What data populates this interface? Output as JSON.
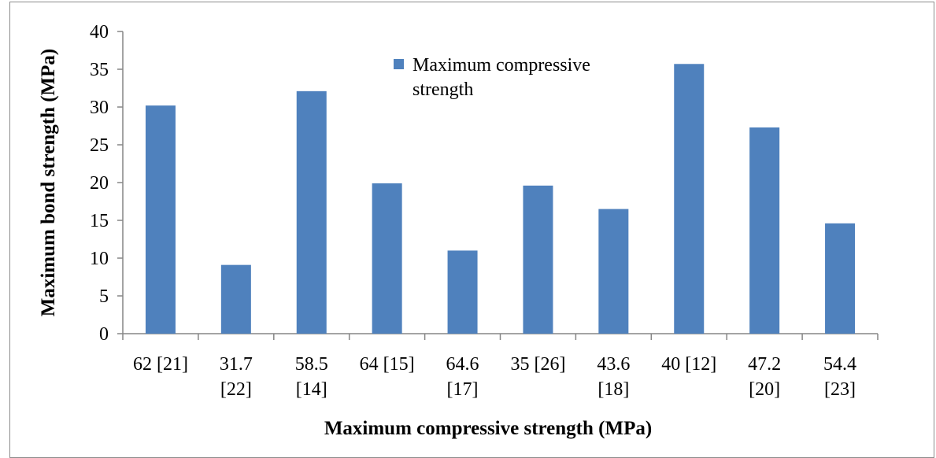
{
  "chart_data": {
    "type": "bar",
    "categories": [
      [
        "62 [21]"
      ],
      [
        "31.7",
        "[22]"
      ],
      [
        "58.5",
        "[14]"
      ],
      [
        "64 [15]"
      ],
      [
        "64.6",
        "[17]"
      ],
      [
        "35 [26]"
      ],
      [
        "43.6",
        "[18]"
      ],
      [
        "40 [12]"
      ],
      [
        "47.2",
        "[20]"
      ],
      [
        "54.4",
        "[23]"
      ]
    ],
    "series": [
      {
        "name": [
          "Maximum compressive",
          "strength"
        ],
        "color": "#4f81bd",
        "values": [
          30.2,
          9.1,
          32.1,
          19.9,
          11.0,
          19.6,
          16.5,
          35.7,
          27.3,
          14.6
        ]
      }
    ],
    "xlabel": "Maximum compressive strength (MPa)",
    "ylabel": "Maximum bond strength (MPa)",
    "ylim": [
      0,
      40
    ],
    "yticks": [
      0,
      5,
      10,
      15,
      20,
      25,
      30,
      35,
      40
    ],
    "grid": false,
    "legend_position": "top-center"
  }
}
